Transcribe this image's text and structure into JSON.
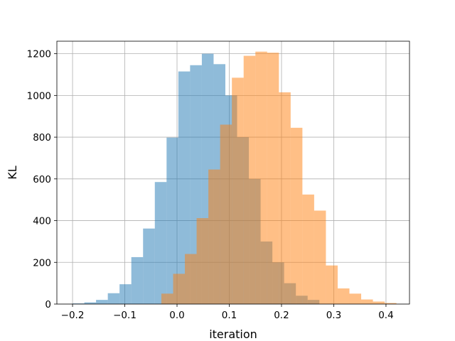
{
  "chart_data": {
    "type": "bar",
    "title": "",
    "xlabel": "iteration",
    "ylabel": "KL",
    "xlim": [
      -0.23,
      0.445
    ],
    "ylim": [
      0,
      1260
    ],
    "xticks": [
      -0.2,
      -0.1,
      0.0,
      0.1,
      0.2,
      0.3,
      0.4
    ],
    "xtick_labels": [
      "−0.2",
      "−0.1",
      "0.0",
      "0.1",
      "0.2",
      "0.3",
      "0.4"
    ],
    "yticks": [
      0,
      200,
      400,
      600,
      800,
      1000,
      1200
    ],
    "ytick_labels": [
      "0",
      "200",
      "400",
      "600",
      "800",
      "1000",
      "1200"
    ],
    "grid": true,
    "series": [
      {
        "color": "#1f77b4",
        "opacity": 0.5,
        "bin_edges": [
          -0.2,
          -0.1775,
          -0.155,
          -0.1325,
          -0.11,
          -0.0875,
          -0.065,
          -0.0425,
          -0.02,
          0.0025,
          0.025,
          0.0475,
          0.07,
          0.0925,
          0.115,
          0.1375,
          0.16,
          0.1825,
          0.205,
          0.2275,
          0.25,
          0.2725
        ],
        "counts": [
          3,
          8,
          20,
          52,
          95,
          225,
          362,
          585,
          798,
          1115,
          1145,
          1200,
          1150,
          1000,
          800,
          600,
          300,
          200,
          100,
          40,
          20
        ]
      },
      {
        "color": "#ff7f0e",
        "opacity": 0.5,
        "bin_edges": [
          -0.03,
          -0.0075,
          0.015,
          0.0375,
          0.06,
          0.0825,
          0.105,
          0.1275,
          0.15,
          0.1725,
          0.195,
          0.2175,
          0.24,
          0.2625,
          0.285,
          0.3075,
          0.33,
          0.3525,
          0.375,
          0.3975,
          0.42
        ],
        "counts": [
          50,
          145,
          240,
          412,
          645,
          860,
          1085,
          1190,
          1210,
          1205,
          1015,
          845,
          525,
          448,
          185,
          75,
          50,
          22,
          12,
          5
        ]
      }
    ]
  }
}
